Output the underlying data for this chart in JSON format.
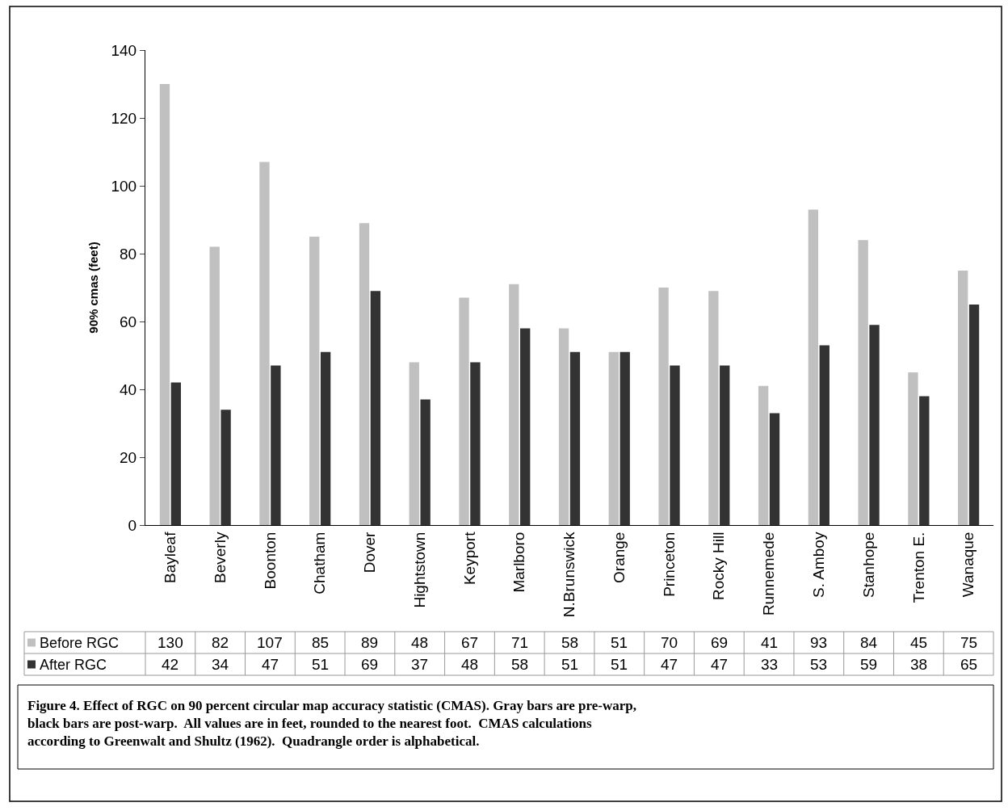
{
  "chart_data": {
    "type": "bar",
    "ylabel": "90% cmas (feet)",
    "categories": [
      "Bayleaf",
      "Beverly",
      "Boonton",
      "Chatham",
      "Dover",
      "Hightstown",
      "Keyport",
      "Marlboro",
      "N.Brunswick",
      "Orange",
      "Princeton",
      "Rocky Hill",
      "Runnemede",
      "S. Amboy",
      "Stanhope",
      "Trenton E.",
      "Wanaque"
    ],
    "series": [
      {
        "name": "Before RGC",
        "color": "#c0c0c0",
        "values": [
          130,
          82,
          107,
          85,
          89,
          48,
          67,
          71,
          58,
          51,
          70,
          69,
          41,
          93,
          84,
          45,
          75
        ]
      },
      {
        "name": "After RGC",
        "color": "#333333",
        "values": [
          42,
          34,
          47,
          51,
          69,
          37,
          48,
          58,
          51,
          51,
          47,
          47,
          33,
          53,
          59,
          38,
          65
        ]
      }
    ],
    "ylim": [
      0,
      140
    ],
    "yticks": [
      0,
      20,
      40,
      60,
      80,
      100,
      120,
      140
    ],
    "legend": "bottom left",
    "data_labels": true,
    "annotations": [
      "Figure 4. Effect of RGC on 90 percent circular map accuracy statistic (CMAS). Gray bars are pre-warp, black bars are post-warp.  All values are in feet, rounded to the nearest foot.  CMAS calculations according to Greenwalt and Shultz (1962).  Quadrangle order is alphabetical."
    ]
  }
}
